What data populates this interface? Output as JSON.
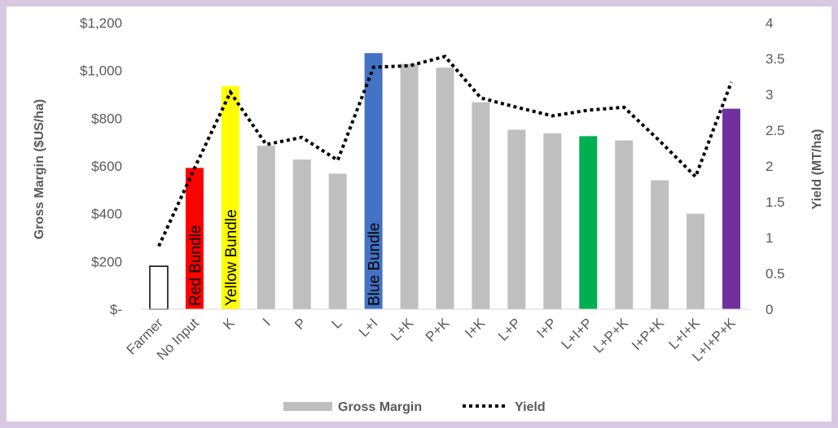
{
  "chart_data": {
    "type": "bar",
    "categories": [
      "Farmer",
      "No Input",
      "K",
      "I",
      "P",
      "L",
      "L+I",
      "L+K",
      "P+K",
      "I+K",
      "L+P",
      "I+P",
      "L+I+P",
      "L+P+K",
      "I+P+K",
      "L+I+K",
      "L+I+P+K"
    ],
    "series": [
      {
        "name": "Gross Margin",
        "kind": "bar",
        "axis": "left",
        "values": [
          180,
          592,
          935,
          685,
          627,
          568,
          1073,
          1028,
          1012,
          867,
          752,
          737,
          725,
          707,
          540,
          400,
          840
        ]
      },
      {
        "name": "Yield",
        "kind": "line",
        "style": "dotted",
        "axis": "right",
        "values": [
          0.88,
          1.97,
          3.03,
          2.3,
          2.4,
          2.08,
          3.38,
          3.4,
          3.53,
          2.95,
          2.82,
          2.7,
          2.78,
          2.82,
          2.35,
          1.85,
          3.17
        ]
      }
    ],
    "bar_colors": [
      "#ffffff",
      "#ff0000",
      "#ffff00",
      "#bfbfbf",
      "#bfbfbf",
      "#bfbfbf",
      "#4472c4",
      "#bfbfbf",
      "#bfbfbf",
      "#bfbfbf",
      "#bfbfbf",
      "#bfbfbf",
      "#00b050",
      "#bfbfbf",
      "#bfbfbf",
      "#bfbfbf",
      "#7030a0"
    ],
    "bar_labels": {
      "1": "Red Bundle",
      "2": "Yellow Bundle",
      "6": "Blue Bundle"
    },
    "left_axis": {
      "title": "Gross Margin ($US/ha)",
      "min": 0,
      "max": 1200,
      "ticks": [
        "$-",
        "$200",
        "$400",
        "$600",
        "$800",
        "$1,000",
        "$1,200"
      ]
    },
    "right_axis": {
      "title": "Yield (MT/ha)",
      "min": 0,
      "max": 4,
      "ticks": [
        "0",
        "0.5",
        "1",
        "1.5",
        "2",
        "2.5",
        "3",
        "3.5",
        "4"
      ]
    },
    "grid": false,
    "legend_position": "bottom",
    "legend": {
      "bar_label": "Gross Margin",
      "line_label": "Yield"
    },
    "colors": {
      "default_bar": "#bfbfbf",
      "line": "#000000",
      "background": "#ffffff",
      "border": "#d9c8e2"
    }
  }
}
